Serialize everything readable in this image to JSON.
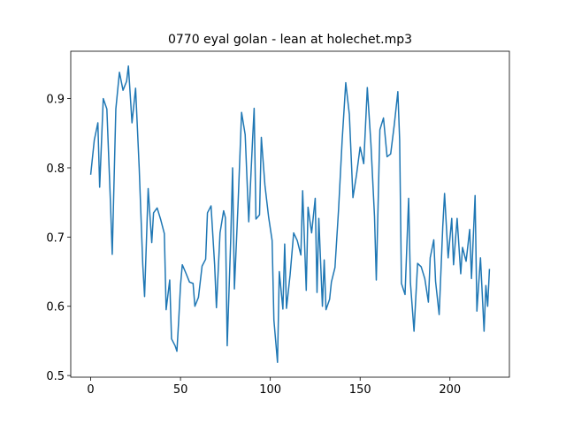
{
  "chart_data": {
    "type": "line",
    "title": "0770 eyal golan - lean at holechet.mp3",
    "x": [
      0,
      2,
      4,
      5,
      7,
      9,
      11,
      12,
      14,
      16,
      18,
      20,
      21,
      23,
      25,
      27,
      29,
      30,
      32,
      34,
      35,
      37,
      39,
      41,
      42,
      44,
      45,
      47,
      48,
      49,
      50,
      51,
      53,
      55,
      57,
      58,
      60,
      62,
      64,
      65,
      67,
      69,
      70,
      72,
      74,
      75,
      76,
      78,
      79,
      80,
      82,
      84,
      86,
      88,
      90,
      91,
      92,
      94,
      95,
      97,
      99,
      101,
      102,
      104,
      105,
      107,
      108,
      109,
      111,
      113,
      115,
      117,
      118,
      120,
      121,
      123,
      125,
      126,
      127,
      129,
      130,
      131,
      133,
      134,
      136,
      138,
      140,
      142,
      144,
      146,
      148,
      150,
      152,
      154,
      156,
      158,
      159,
      161,
      163,
      165,
      167,
      169,
      171,
      172,
      173,
      175,
      177,
      178,
      180,
      182,
      184,
      186,
      188,
      189,
      191,
      192,
      194,
      196,
      197,
      199,
      201,
      202,
      204,
      206,
      207,
      209,
      211,
      212,
      214,
      215,
      217,
      219,
      220,
      221,
      222
    ],
    "series": [
      {
        "color": "#1f77b4",
        "values": [
          0.79,
          0.84,
          0.865,
          0.772,
          0.9,
          0.885,
          0.75,
          0.675,
          0.885,
          0.938,
          0.912,
          0.925,
          0.947,
          0.865,
          0.915,
          0.8,
          0.66,
          0.614,
          0.77,
          0.692,
          0.735,
          0.742,
          0.725,
          0.705,
          0.595,
          0.638,
          0.553,
          0.543,
          0.535,
          0.58,
          0.63,
          0.66,
          0.648,
          0.635,
          0.633,
          0.6,
          0.613,
          0.658,
          0.668,
          0.735,
          0.745,
          0.66,
          0.598,
          0.706,
          0.738,
          0.728,
          0.543,
          0.7,
          0.8,
          0.625,
          0.745,
          0.88,
          0.848,
          0.722,
          0.834,
          0.886,
          0.726,
          0.732,
          0.844,
          0.775,
          0.73,
          0.695,
          0.58,
          0.519,
          0.65,
          0.596,
          0.69,
          0.597,
          0.645,
          0.706,
          0.695,
          0.674,
          0.767,
          0.623,
          0.743,
          0.706,
          0.756,
          0.62,
          0.727,
          0.6,
          0.667,
          0.595,
          0.61,
          0.635,
          0.656,
          0.74,
          0.84,
          0.923,
          0.877,
          0.757,
          0.79,
          0.83,
          0.806,
          0.916,
          0.835,
          0.73,
          0.638,
          0.855,
          0.872,
          0.816,
          0.82,
          0.862,
          0.91,
          0.84,
          0.633,
          0.617,
          0.756,
          0.634,
          0.564,
          0.662,
          0.657,
          0.64,
          0.606,
          0.67,
          0.696,
          0.636,
          0.588,
          0.715,
          0.763,
          0.67,
          0.727,
          0.66,
          0.727,
          0.647,
          0.685,
          0.665,
          0.711,
          0.64,
          0.76,
          0.593,
          0.67,
          0.564,
          0.63,
          0.6,
          0.654
        ]
      }
    ],
    "xlim": [
      -11.1,
      233.1
    ],
    "ylim": [
      0.4976,
      0.9684
    ],
    "xticks": [
      0,
      50,
      100,
      150,
      200
    ],
    "yticks": [
      0.5,
      0.6,
      0.7,
      0.8,
      0.9
    ]
  }
}
